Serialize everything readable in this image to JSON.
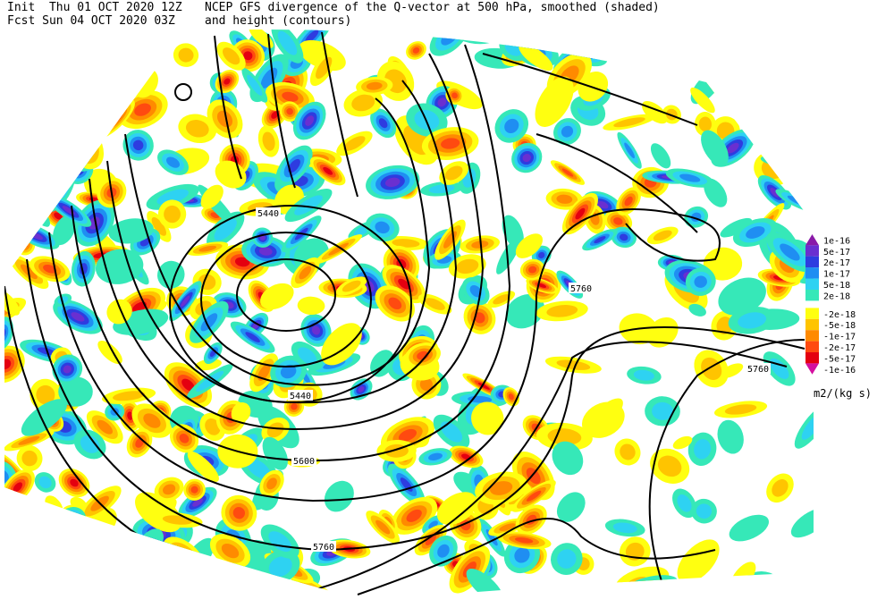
{
  "header": {
    "init": "Init  Thu 01 OCT 2020 12Z",
    "forecast": "Fcst Sun 04 OCT 2020 03Z",
    "title": "NCEP GFS divergence of the Q-vector at 500 hPa, smoothed (shaded)",
    "subtitle": "and height (contours)"
  },
  "legend": {
    "items": [
      {
        "label": "1e-16",
        "color": "#8a1aa8"
      },
      {
        "label": "5e-17",
        "color": "#6a2fd0"
      },
      {
        "label": "2e-17",
        "color": "#2e3ce0"
      },
      {
        "label": "1e-17",
        "color": "#1f8ef2"
      },
      {
        "label": "5e-18",
        "color": "#2ed2f2"
      },
      {
        "label": "2e-18",
        "color": "#36e8b8"
      },
      {
        "label": "-2e-18",
        "color": "#ffff10"
      },
      {
        "label": "-5e-18",
        "color": "#ffc400"
      },
      {
        "label": "-1e-17",
        "color": "#ff8a00"
      },
      {
        "label": "-2e-17",
        "color": "#ff4a10"
      },
      {
        "label": "-5e-17",
        "color": "#e40010"
      },
      {
        "label": "-1e-16",
        "color": "#d410a0"
      }
    ],
    "units": "m2/(kg s)"
  },
  "contour_labels": [
    "5440",
    "5760",
    "5760",
    "5440",
    "5600",
    "5760"
  ]
}
